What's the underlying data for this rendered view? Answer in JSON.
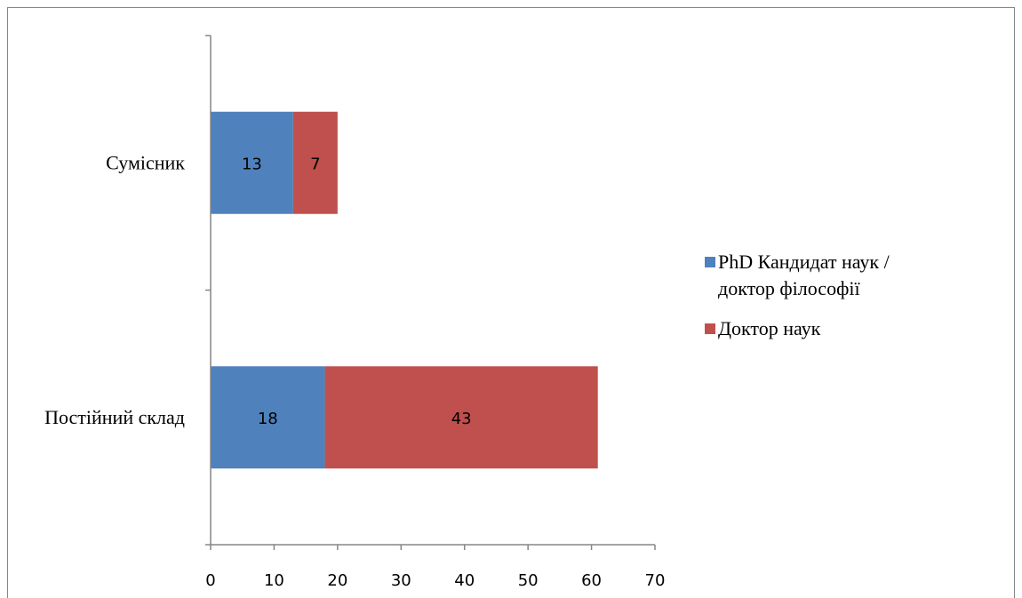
{
  "chart_data": {
    "type": "bar",
    "orientation": "horizontal",
    "stacked": true,
    "categories": [
      "Сумісник",
      "Постійний склад"
    ],
    "series": [
      {
        "name": "PhD Кандидат наук / доктор філософії",
        "values": [
          13,
          18
        ],
        "color": "#4F81BD"
      },
      {
        "name": "Доктор наук",
        "values": [
          7,
          43
        ],
        "color": "#C0504D"
      }
    ],
    "xlim": [
      0,
      70
    ],
    "x_ticks": [
      0,
      10,
      20,
      30,
      40,
      50,
      60,
      70
    ],
    "legend_position": "right",
    "grid": false,
    "data_labels": true,
    "title": "",
    "xlabel": "",
    "ylabel": ""
  }
}
